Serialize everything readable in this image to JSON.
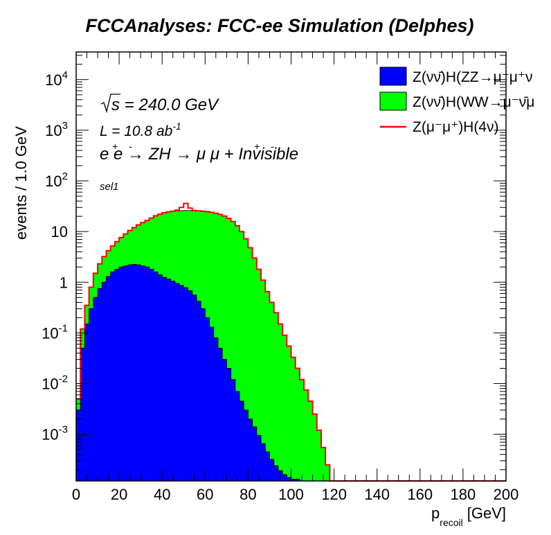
{
  "chart_data": {
    "type": "area",
    "title": "FCCAnalyses: FCC-ee Simulation (Delphes)",
    "xlabel": "p",
    "xlabel_sub": "recoil",
    "xlabel_unit": "[GeV]",
    "ylabel": "events / 1.0 GeV",
    "xlim": [
      0,
      200
    ],
    "ylim": [
      0.00012,
      35000
    ],
    "yscale": "log",
    "grid": false,
    "legend_position": "top-right",
    "x_ticks": [
      0,
      20,
      40,
      60,
      80,
      100,
      120,
      140,
      160,
      180,
      200
    ],
    "y_ticks": [
      {
        "value": 0.001,
        "base": "10",
        "exp": "-3"
      },
      {
        "value": 0.01,
        "base": "10",
        "exp": "-2"
      },
      {
        "value": 0.1,
        "base": "10",
        "exp": "-1"
      },
      {
        "value": 1,
        "base": "1",
        "exp": ""
      },
      {
        "value": 10,
        "base": "10",
        "exp": ""
      },
      {
        "value": 100,
        "base": "10",
        "exp": "2"
      },
      {
        "value": 1000,
        "base": "10",
        "exp": "3"
      },
      {
        "value": 10000,
        "base": "10",
        "exp": "4"
      }
    ],
    "annotations": {
      "sqrt_s": "s = 240.0 GeV",
      "lumi": "L = 10.8 ab",
      "lumi_exp": "-1",
      "process": "e e  → ZH → μ μ  + Invisible",
      "selection": "sel1"
    },
    "series": [
      {
        "name": "Z(νν̄)H(ZZ→μ⁻μ⁺νν̄)",
        "legend_text": "Z(νν̄)H(ZZ→μ⁻μ⁺ν",
        "style": "filled",
        "color": "#0000ff",
        "x": [
          1,
          3,
          5,
          7,
          9,
          11,
          13,
          15,
          17,
          19,
          21,
          23,
          25,
          27,
          29,
          31,
          33,
          35,
          37,
          39,
          41,
          43,
          45,
          47,
          49,
          51,
          53,
          55,
          57,
          59,
          61,
          63,
          65,
          67,
          69,
          71,
          73,
          75,
          77,
          79,
          81,
          83,
          85,
          87,
          89,
          91,
          93,
          95,
          97,
          99,
          101,
          103,
          105,
          107
        ],
        "values": [
          0.003,
          0.05,
          0.15,
          0.3,
          0.5,
          0.75,
          1.0,
          1.3,
          1.6,
          1.8,
          2.0,
          2.1,
          2.2,
          2.25,
          2.2,
          2.1,
          2.0,
          1.8,
          1.6,
          1.4,
          1.25,
          1.15,
          1.05,
          0.95,
          0.87,
          0.78,
          0.68,
          0.56,
          0.42,
          0.3,
          0.2,
          0.13,
          0.08,
          0.05,
          0.03,
          0.02,
          0.012,
          0.007,
          0.0045,
          0.003,
          0.002,
          0.0014,
          0.00095,
          0.00065,
          0.00045,
          0.00032,
          0.00024,
          0.00019,
          0.00016,
          0.00014,
          0.00013,
          0.00013,
          0.00012,
          0.00012
        ]
      },
      {
        "name": "Z(νν̄)H(WW→μ⁻ν̄μ⁺ν)",
        "legend_text": "Z(νν̄)H(WW→μ⁻ν̄μ",
        "style": "filled",
        "color": "#00ff00",
        "x": [
          1,
          3,
          5,
          7,
          9,
          11,
          13,
          15,
          17,
          19,
          21,
          23,
          25,
          27,
          29,
          31,
          33,
          35,
          37,
          39,
          41,
          43,
          45,
          47,
          49,
          51,
          53,
          55,
          57,
          59,
          61,
          63,
          65,
          67,
          69,
          71,
          73,
          75,
          77,
          79,
          81,
          83,
          85,
          87,
          89,
          91,
          93,
          95,
          97,
          99,
          101,
          103,
          105,
          107,
          109,
          111,
          113,
          115,
          117,
          119
        ],
        "values": [
          0.005,
          0.12,
          0.35,
          0.8,
          1.5,
          2.3,
          3.2,
          4.2,
          5.2,
          6.3,
          7.6,
          9.0,
          10.5,
          12.0,
          13.5,
          15.0,
          16.5,
          18.5,
          20.5,
          22.0,
          23.5,
          24.5,
          25.2,
          25.6,
          25.8,
          25.9,
          25.9,
          25.8,
          25.6,
          25.2,
          24.7,
          24.0,
          23.0,
          21.8,
          20.2,
          18.2,
          15.8,
          13.0,
          10.0,
          7.2,
          4.8,
          3.0,
          1.8,
          1.1,
          0.65,
          0.4,
          0.25,
          0.15,
          0.09,
          0.055,
          0.033,
          0.02,
          0.012,
          0.0075,
          0.0045,
          0.0025,
          0.0012,
          0.00055,
          0.00025,
          0.00012
        ]
      },
      {
        "name": "Z(μ⁻μ⁺)H(4ν)",
        "legend_text": "Z(μ⁻μ⁺)H(4ν)",
        "style": "line",
        "color": "#ff0000",
        "x": [
          45,
          47,
          49,
          51,
          53,
          55,
          57
        ],
        "values": [
          25.3,
          26.5,
          30.0,
          36.0,
          29.0,
          26.0,
          25.7
        ]
      }
    ]
  }
}
